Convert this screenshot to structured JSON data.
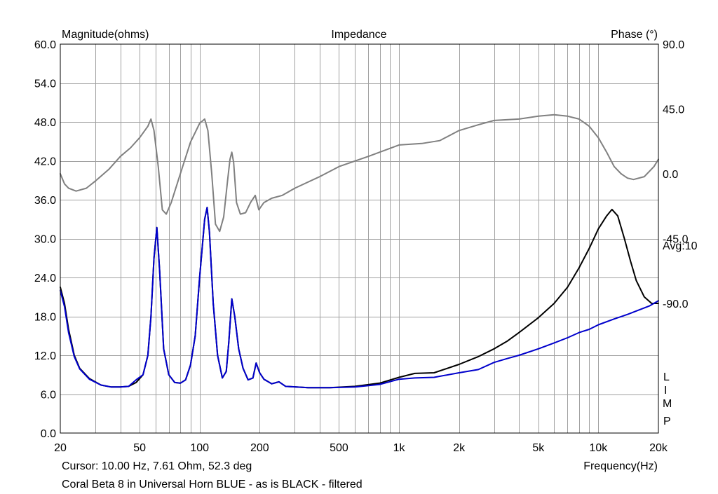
{
  "chart_data": {
    "type": "line",
    "title": "Impedance",
    "left_axis_label": "Magnitude(ohms)",
    "right_axis_label": "Phase (°)",
    "xlabel": "Frequency(Hz)",
    "x_scale": "log",
    "xlim": [
      20,
      20000
    ],
    "ylim_left": [
      0,
      60
    ],
    "ylim_right": [
      -180,
      90
    ],
    "grid": true,
    "x_tick_labels": [
      {
        "value": 20,
        "label": "20"
      },
      {
        "value": 50,
        "label": "50"
      },
      {
        "value": 100,
        "label": "100"
      },
      {
        "value": 200,
        "label": "200"
      },
      {
        "value": 500,
        "label": "500"
      },
      {
        "value": 1000,
        "label": "1k"
      },
      {
        "value": 2000,
        "label": "2k"
      },
      {
        "value": 5000,
        "label": "5k"
      },
      {
        "value": 10000,
        "label": "10k"
      },
      {
        "value": 20000,
        "label": "20k"
      }
    ],
    "y_left_ticks": [
      {
        "value": 0,
        "label": "0.0"
      },
      {
        "value": 6,
        "label": "6.0"
      },
      {
        "value": 12,
        "label": "12.0"
      },
      {
        "value": 18,
        "label": "18.0"
      },
      {
        "value": 24,
        "label": "24.0"
      },
      {
        "value": 30,
        "label": "30.0"
      },
      {
        "value": 36,
        "label": "36.0"
      },
      {
        "value": 42,
        "label": "42.0"
      },
      {
        "value": 48,
        "label": "48.0"
      },
      {
        "value": 54,
        "label": "54.0"
      },
      {
        "value": 60,
        "label": "60.0"
      }
    ],
    "y_right_ticks": [
      {
        "value": 90,
        "label": "90.0"
      },
      {
        "value": 45,
        "label": "45.0"
      },
      {
        "value": 0,
        "label": "0.0"
      },
      {
        "value": -45,
        "label": "-45.0"
      },
      {
        "value": -90,
        "label": "-90.0"
      }
    ],
    "avg_label": "Avg:10",
    "limp_letters": [
      "L",
      "I",
      "M",
      "P"
    ],
    "cursor_text": "Cursor: 10.00 Hz, 7.61 Ohm, 52.3 deg",
    "caption": "Coral Beta 8 in Universal Horn BLUE - as is BLACK - filtered",
    "series": [
      {
        "color": "#808080",
        "axis": "right",
        "points": [
          [
            20,
            0
          ],
          [
            21,
            -7
          ],
          [
            22,
            -10
          ],
          [
            24,
            -12
          ],
          [
            27,
            -10
          ],
          [
            30,
            -5
          ],
          [
            35,
            3
          ],
          [
            40,
            12
          ],
          [
            45,
            18
          ],
          [
            50,
            25
          ],
          [
            55,
            33
          ],
          [
            57,
            38
          ],
          [
            59,
            30
          ],
          [
            62,
            5
          ],
          [
            65,
            -25
          ],
          [
            68,
            -28
          ],
          [
            72,
            -20
          ],
          [
            80,
            0
          ],
          [
            90,
            22
          ],
          [
            100,
            35
          ],
          [
            106,
            38
          ],
          [
            110,
            30
          ],
          [
            115,
            0
          ],
          [
            120,
            -35
          ],
          [
            126,
            -40
          ],
          [
            132,
            -30
          ],
          [
            138,
            -5
          ],
          [
            142,
            10
          ],
          [
            145,
            15
          ],
          [
            148,
            8
          ],
          [
            153,
            -20
          ],
          [
            160,
            -28
          ],
          [
            170,
            -27
          ],
          [
            180,
            -20
          ],
          [
            190,
            -15
          ],
          [
            198,
            -25
          ],
          [
            210,
            -20
          ],
          [
            230,
            -17
          ],
          [
            260,
            -15
          ],
          [
            300,
            -10
          ],
          [
            400,
            -2
          ],
          [
            500,
            5
          ],
          [
            700,
            12
          ],
          [
            1000,
            20
          ],
          [
            1300,
            21
          ],
          [
            1600,
            23
          ],
          [
            2000,
            30
          ],
          [
            2500,
            34
          ],
          [
            3000,
            37
          ],
          [
            4000,
            38
          ],
          [
            5000,
            40
          ],
          [
            6000,
            41
          ],
          [
            7000,
            40
          ],
          [
            8000,
            38
          ],
          [
            9000,
            33
          ],
          [
            10000,
            25
          ],
          [
            11000,
            15
          ],
          [
            12000,
            5
          ],
          [
            13000,
            0
          ],
          [
            14000,
            -3
          ],
          [
            15000,
            -4
          ],
          [
            17000,
            -2
          ],
          [
            19000,
            5
          ],
          [
            20000,
            10
          ]
        ]
      },
      {
        "color": "#000000",
        "axis": "left",
        "points": [
          [
            20,
            22.5
          ],
          [
            21,
            20
          ],
          [
            22,
            16
          ],
          [
            23.5,
            12
          ],
          [
            25,
            10
          ],
          [
            28,
            8.4
          ],
          [
            32,
            7.4
          ],
          [
            36,
            7.1
          ],
          [
            40,
            7.1
          ],
          [
            44,
            7.2
          ],
          [
            48,
            7.8
          ],
          [
            52,
            9.0
          ],
          [
            55,
            12
          ],
          [
            57,
            18
          ],
          [
            59,
            27
          ],
          [
            61,
            31.7
          ],
          [
            63,
            25
          ],
          [
            66,
            13
          ],
          [
            70,
            9
          ],
          [
            75,
            7.8
          ],
          [
            80,
            7.7
          ],
          [
            85,
            8.2
          ],
          [
            90,
            10.5
          ],
          [
            95,
            15
          ],
          [
            100,
            24
          ],
          [
            106,
            33
          ],
          [
            109,
            34.8
          ],
          [
            112,
            31
          ],
          [
            117,
            20
          ],
          [
            123,
            12
          ],
          [
            130,
            8.5
          ],
          [
            136,
            9.5
          ],
          [
            140,
            14
          ],
          [
            145,
            20.7
          ],
          [
            150,
            18
          ],
          [
            157,
            13
          ],
          [
            165,
            10
          ],
          [
            175,
            8.2
          ],
          [
            185,
            8.5
          ],
          [
            192,
            10.8
          ],
          [
            200,
            9.3
          ],
          [
            210,
            8.3
          ],
          [
            230,
            7.6
          ],
          [
            250,
            7.9
          ],
          [
            270,
            7.2
          ],
          [
            350,
            7.0
          ],
          [
            450,
            7.0
          ],
          [
            600,
            7.2
          ],
          [
            800,
            7.7
          ],
          [
            1000,
            8.6
          ],
          [
            1200,
            9.2
          ],
          [
            1500,
            9.3
          ],
          [
            2000,
            10.6
          ],
          [
            2500,
            11.8
          ],
          [
            3000,
            13.0
          ],
          [
            3500,
            14.2
          ],
          [
            4000,
            15.5
          ],
          [
            5000,
            17.8
          ],
          [
            6000,
            20.0
          ],
          [
            7000,
            22.5
          ],
          [
            8000,
            25.5
          ],
          [
            9000,
            28.5
          ],
          [
            10000,
            31.5
          ],
          [
            11000,
            33.5
          ],
          [
            11700,
            34.5
          ],
          [
            12500,
            33.5
          ],
          [
            13500,
            30
          ],
          [
            14500,
            26.5
          ],
          [
            15500,
            23.5
          ],
          [
            17000,
            21.0
          ],
          [
            18500,
            20.0
          ],
          [
            20000,
            20.0
          ]
        ]
      },
      {
        "color": "#0000cc",
        "axis": "left",
        "points": [
          [
            20,
            22.0
          ],
          [
            21,
            19.5
          ],
          [
            22,
            15.5
          ],
          [
            23.5,
            11.8
          ],
          [
            25,
            9.9
          ],
          [
            28,
            8.3
          ],
          [
            32,
            7.4
          ],
          [
            36,
            7.1
          ],
          [
            40,
            7.1
          ],
          [
            44,
            7.2
          ],
          [
            48,
            8.2
          ],
          [
            52,
            9.0
          ],
          [
            55,
            12
          ],
          [
            57,
            18
          ],
          [
            59,
            27
          ],
          [
            61,
            31.7
          ],
          [
            63,
            25
          ],
          [
            66,
            13
          ],
          [
            70,
            9
          ],
          [
            75,
            7.8
          ],
          [
            80,
            7.7
          ],
          [
            85,
            8.2
          ],
          [
            90,
            10.5
          ],
          [
            95,
            15
          ],
          [
            100,
            24
          ],
          [
            106,
            33
          ],
          [
            109,
            34.8
          ],
          [
            112,
            31
          ],
          [
            117,
            20
          ],
          [
            123,
            12
          ],
          [
            130,
            8.5
          ],
          [
            136,
            9.5
          ],
          [
            140,
            14
          ],
          [
            145,
            20.7
          ],
          [
            150,
            18
          ],
          [
            157,
            13
          ],
          [
            165,
            10
          ],
          [
            175,
            8.2
          ],
          [
            185,
            8.5
          ],
          [
            192,
            10.8
          ],
          [
            200,
            9.3
          ],
          [
            210,
            8.3
          ],
          [
            230,
            7.6
          ],
          [
            250,
            7.9
          ],
          [
            270,
            7.2
          ],
          [
            350,
            7.0
          ],
          [
            450,
            7.0
          ],
          [
            600,
            7.1
          ],
          [
            800,
            7.5
          ],
          [
            1000,
            8.3
          ],
          [
            1200,
            8.5
          ],
          [
            1500,
            8.6
          ],
          [
            2000,
            9.3
          ],
          [
            2500,
            9.8
          ],
          [
            3000,
            10.9
          ],
          [
            3500,
            11.5
          ],
          [
            4000,
            12.0
          ],
          [
            5000,
            13.0
          ],
          [
            6000,
            13.9
          ],
          [
            7000,
            14.7
          ],
          [
            8000,
            15.5
          ],
          [
            9000,
            16.0
          ],
          [
            10000,
            16.7
          ],
          [
            12000,
            17.6
          ],
          [
            14000,
            18.3
          ],
          [
            16000,
            19.0
          ],
          [
            18000,
            19.6
          ],
          [
            20000,
            20.4
          ]
        ]
      }
    ]
  }
}
